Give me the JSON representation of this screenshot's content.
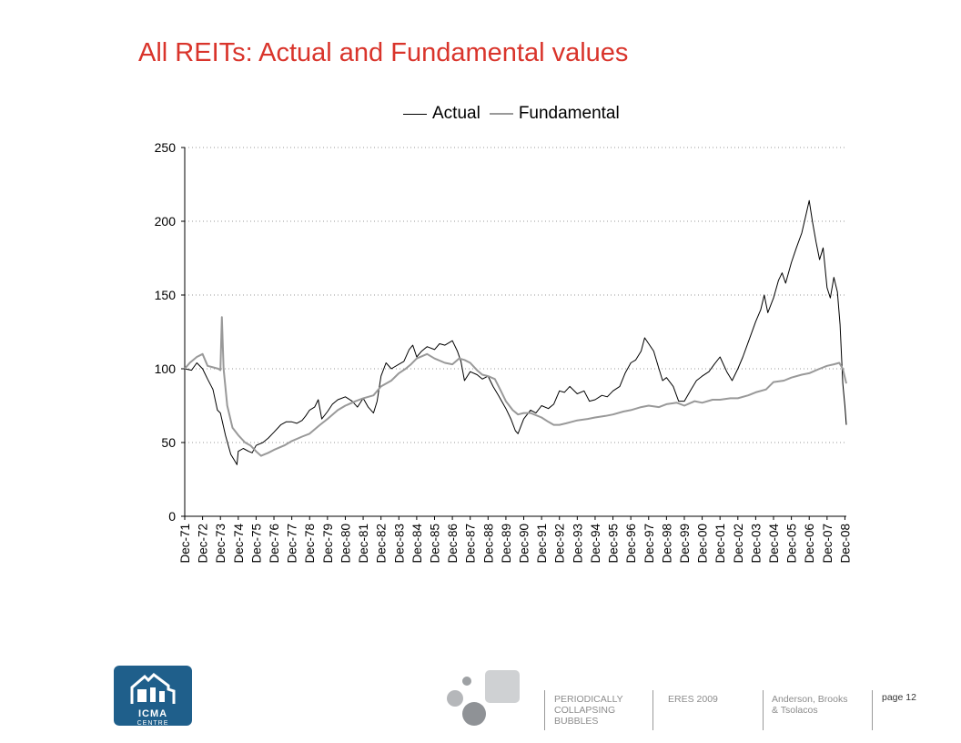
{
  "slide": {
    "title": "All REITs: Actual and Fundamental values"
  },
  "colors": {
    "title": "#d9342b",
    "actual": "#000000",
    "fundamental": "#999999",
    "grid": "#999999",
    "logo": "#1f5f8b"
  },
  "chart_data": {
    "type": "line",
    "title": "",
    "xlabel": "",
    "ylabel": "",
    "ylim": [
      0,
      250
    ],
    "yticks": [
      0,
      50,
      100,
      150,
      200,
      250
    ],
    "grid": "horizontal dotted",
    "legend": "top",
    "x": [
      "Dec-71",
      "Dec-72",
      "Dec-73",
      "Dec-74",
      "Dec-75",
      "Dec-76",
      "Dec-77",
      "Dec-78",
      "Dec-79",
      "Dec-80",
      "Dec-81",
      "Dec-82",
      "Dec-83",
      "Dec-84",
      "Dec-85",
      "Dec-86",
      "Dec-87",
      "Dec-88",
      "Dec-89",
      "Dec-90",
      "Dec-91",
      "Dec-92",
      "Dec-93",
      "Dec-94",
      "Dec-95",
      "Dec-96",
      "Dec-97",
      "Dec-98",
      "Dec-99",
      "Dec-00",
      "Dec-01",
      "Dec-02",
      "Dec-03",
      "Dec-04",
      "Dec-05",
      "Dec-06",
      "Dec-07",
      "Dec-08"
    ],
    "series": [
      {
        "name": "Actual",
        "color": "#000000",
        "points": [
          [
            1971.92,
            100
          ],
          [
            1972.3,
            99
          ],
          [
            1972.6,
            104
          ],
          [
            1972.92,
            100
          ],
          [
            1973.2,
            93
          ],
          [
            1973.5,
            86
          ],
          [
            1973.75,
            72
          ],
          [
            1973.92,
            70
          ],
          [
            1974.2,
            55
          ],
          [
            1974.5,
            42
          ],
          [
            1974.7,
            38
          ],
          [
            1974.85,
            35
          ],
          [
            1974.92,
            44
          ],
          [
            1975.2,
            46
          ],
          [
            1975.5,
            44
          ],
          [
            1975.7,
            43
          ],
          [
            1975.92,
            48
          ],
          [
            1976.3,
            50
          ],
          [
            1976.6,
            53
          ],
          [
            1976.92,
            57
          ],
          [
            1977.3,
            62
          ],
          [
            1977.6,
            64
          ],
          [
            1977.92,
            64
          ],
          [
            1978.2,
            63
          ],
          [
            1978.5,
            65
          ],
          [
            1978.7,
            68
          ],
          [
            1978.92,
            72
          ],
          [
            1979.2,
            74
          ],
          [
            1979.4,
            79
          ],
          [
            1979.6,
            66
          ],
          [
            1979.92,
            71
          ],
          [
            1980.2,
            76
          ],
          [
            1980.5,
            79
          ],
          [
            1980.92,
            81
          ],
          [
            1981.3,
            78
          ],
          [
            1981.6,
            74
          ],
          [
            1981.92,
            80
          ],
          [
            1982.2,
            74
          ],
          [
            1982.5,
            70
          ],
          [
            1982.7,
            78
          ],
          [
            1982.92,
            95
          ],
          [
            1983.2,
            104
          ],
          [
            1983.5,
            100
          ],
          [
            1983.92,
            103
          ],
          [
            1984.2,
            105
          ],
          [
            1984.5,
            113
          ],
          [
            1984.7,
            116
          ],
          [
            1984.92,
            108
          ],
          [
            1985.2,
            112
          ],
          [
            1985.5,
            115
          ],
          [
            1985.92,
            113
          ],
          [
            1986.2,
            117
          ],
          [
            1986.5,
            116
          ],
          [
            1986.92,
            119
          ],
          [
            1987.2,
            112
          ],
          [
            1987.4,
            105
          ],
          [
            1987.6,
            92
          ],
          [
            1987.92,
            98
          ],
          [
            1988.3,
            96
          ],
          [
            1988.6,
            93
          ],
          [
            1988.92,
            95
          ],
          [
            1989.2,
            88
          ],
          [
            1989.5,
            82
          ],
          [
            1989.92,
            73
          ],
          [
            1990.2,
            66
          ],
          [
            1990.45,
            58
          ],
          [
            1990.6,
            56
          ],
          [
            1990.92,
            66
          ],
          [
            1991.3,
            72
          ],
          [
            1991.6,
            70
          ],
          [
            1991.92,
            75
          ],
          [
            1992.3,
            73
          ],
          [
            1992.6,
            76
          ],
          [
            1992.92,
            85
          ],
          [
            1993.2,
            84
          ],
          [
            1993.5,
            88
          ],
          [
            1993.92,
            83
          ],
          [
            1994.3,
            85
          ],
          [
            1994.6,
            78
          ],
          [
            1994.92,
            79
          ],
          [
            1995.3,
            82
          ],
          [
            1995.6,
            81
          ],
          [
            1995.92,
            85
          ],
          [
            1996.3,
            88
          ],
          [
            1996.6,
            97
          ],
          [
            1996.92,
            104
          ],
          [
            1997.2,
            106
          ],
          [
            1997.5,
            112
          ],
          [
            1997.7,
            121
          ],
          [
            1997.92,
            117
          ],
          [
            1998.2,
            112
          ],
          [
            1998.5,
            100
          ],
          [
            1998.7,
            92
          ],
          [
            1998.92,
            94
          ],
          [
            1999.3,
            88
          ],
          [
            1999.6,
            78
          ],
          [
            1999.92,
            78
          ],
          [
            2000.3,
            86
          ],
          [
            2000.6,
            92
          ],
          [
            2000.92,
            95
          ],
          [
            2001.3,
            98
          ],
          [
            2001.6,
            103
          ],
          [
            2001.92,
            108
          ],
          [
            2002.3,
            98
          ],
          [
            2002.6,
            92
          ],
          [
            2002.92,
            100
          ],
          [
            2003.2,
            108
          ],
          [
            2003.5,
            118
          ],
          [
            2003.92,
            132
          ],
          [
            2004.2,
            140
          ],
          [
            2004.4,
            150
          ],
          [
            2004.6,
            138
          ],
          [
            2004.92,
            148
          ],
          [
            2005.2,
            160
          ],
          [
            2005.4,
            165
          ],
          [
            2005.6,
            158
          ],
          [
            2005.92,
            172
          ],
          [
            2006.2,
            182
          ],
          [
            2006.5,
            192
          ],
          [
            2006.75,
            205
          ],
          [
            2006.92,
            214
          ],
          [
            2007.1,
            200
          ],
          [
            2007.3,
            186
          ],
          [
            2007.5,
            174
          ],
          [
            2007.7,
            182
          ],
          [
            2007.92,
            155
          ],
          [
            2008.1,
            148
          ],
          [
            2008.3,
            162
          ],
          [
            2008.5,
            152
          ],
          [
            2008.65,
            130
          ],
          [
            2008.8,
            90
          ],
          [
            2008.92,
            75
          ],
          [
            2009.0,
            62
          ]
        ]
      },
      {
        "name": "Fundamental",
        "color": "#999999",
        "points": [
          [
            1971.92,
            100
          ],
          [
            1972.2,
            104
          ],
          [
            1972.6,
            108
          ],
          [
            1972.92,
            110
          ],
          [
            1973.2,
            102
          ],
          [
            1973.5,
            101
          ],
          [
            1973.8,
            100
          ],
          [
            1973.92,
            99
          ],
          [
            1974.0,
            135
          ],
          [
            1974.1,
            100
          ],
          [
            1974.3,
            75
          ],
          [
            1974.6,
            60
          ],
          [
            1974.92,
            55
          ],
          [
            1975.3,
            50
          ],
          [
            1975.6,
            48
          ],
          [
            1975.92,
            44
          ],
          [
            1976.2,
            41
          ],
          [
            1976.6,
            43
          ],
          [
            1976.92,
            45
          ],
          [
            1977.5,
            48
          ],
          [
            1977.92,
            51
          ],
          [
            1978.5,
            54
          ],
          [
            1978.92,
            56
          ],
          [
            1979.5,
            62
          ],
          [
            1979.92,
            66
          ],
          [
            1980.5,
            72
          ],
          [
            1980.92,
            75
          ],
          [
            1981.5,
            78
          ],
          [
            1981.92,
            80
          ],
          [
            1982.5,
            82
          ],
          [
            1982.92,
            88
          ],
          [
            1983.5,
            92
          ],
          [
            1983.92,
            97
          ],
          [
            1984.3,
            100
          ],
          [
            1984.6,
            103
          ],
          [
            1984.92,
            107
          ],
          [
            1985.5,
            110
          ],
          [
            1985.92,
            107
          ],
          [
            1986.5,
            104
          ],
          [
            1986.92,
            103
          ],
          [
            1987.3,
            107
          ],
          [
            1987.6,
            106
          ],
          [
            1987.92,
            104
          ],
          [
            1988.3,
            99
          ],
          [
            1988.6,
            96
          ],
          [
            1988.92,
            95
          ],
          [
            1989.3,
            93
          ],
          [
            1989.6,
            86
          ],
          [
            1989.92,
            78
          ],
          [
            1990.3,
            72
          ],
          [
            1990.6,
            69
          ],
          [
            1990.92,
            70
          ],
          [
            1991.3,
            70
          ],
          [
            1991.92,
            67
          ],
          [
            1992.3,
            64
          ],
          [
            1992.6,
            62
          ],
          [
            1992.92,
            62
          ],
          [
            1993.3,
            63
          ],
          [
            1993.6,
            64
          ],
          [
            1993.92,
            65
          ],
          [
            1994.5,
            66
          ],
          [
            1994.92,
            67
          ],
          [
            1995.5,
            68
          ],
          [
            1995.92,
            69
          ],
          [
            1996.5,
            71
          ],
          [
            1996.92,
            72
          ],
          [
            1997.5,
            74
          ],
          [
            1997.92,
            75
          ],
          [
            1998.5,
            74
          ],
          [
            1998.92,
            76
          ],
          [
            1999.5,
            77
          ],
          [
            1999.92,
            75
          ],
          [
            2000.5,
            78
          ],
          [
            2000.92,
            77
          ],
          [
            2001.5,
            79
          ],
          [
            2001.92,
            79
          ],
          [
            2002.5,
            80
          ],
          [
            2002.92,
            80
          ],
          [
            2003.5,
            82
          ],
          [
            2003.92,
            84
          ],
          [
            2004.5,
            86
          ],
          [
            2004.92,
            91
          ],
          [
            2005.5,
            92
          ],
          [
            2005.92,
            94
          ],
          [
            2006.5,
            96
          ],
          [
            2006.92,
            97
          ],
          [
            2007.5,
            100
          ],
          [
            2007.92,
            102
          ],
          [
            2008.3,
            103
          ],
          [
            2008.6,
            104
          ],
          [
            2008.8,
            100
          ],
          [
            2009.0,
            90
          ]
        ]
      }
    ]
  },
  "footer": {
    "logo_text": "ICMA",
    "logo_sub": "CENTRE",
    "col1": [
      "PERIODICALLY",
      "COLLAPSING",
      "BUBBLES"
    ],
    "col2": "ERES 2009",
    "col3": [
      "Anderson, Brooks",
      "& Tsolacos"
    ],
    "page": "page 12"
  }
}
